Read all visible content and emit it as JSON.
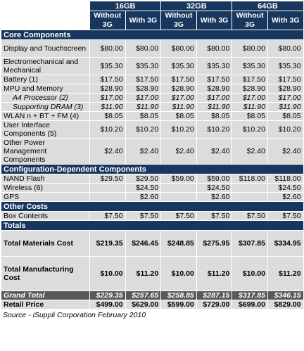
{
  "header": {
    "storage": [
      "16GB",
      "32GB",
      "64GB"
    ],
    "without_3g": "Without 3G",
    "with_3g": "With 3G"
  },
  "sections": {
    "core": "Core Components",
    "config": "Configuration-Dependent Components",
    "other": "Other Costs",
    "totals": "Totals"
  },
  "core_rows": [
    {
      "label": "Display and Touchscreen",
      "values": [
        "$80.00",
        "$80.00",
        "$80.00",
        "$80.00",
        "$80.00",
        "$80.00"
      ]
    },
    {
      "label": "Electromechanical and Mechanical",
      "values": [
        "$35.30",
        "$35.30",
        "$35.30",
        "$35.30",
        "$35.30",
        "$35.30"
      ]
    },
    {
      "label": "Battery (1)",
      "values": [
        "$17.50",
        "$17.50",
        "$17.50",
        "$17.50",
        "$17.50",
        "$17.50"
      ]
    },
    {
      "label": "MPU and Memory",
      "values": [
        "$28.90",
        "$28.90",
        "$28.90",
        "$28.90",
        "$28.90",
        "$28.90"
      ]
    },
    {
      "label": "A4 Processor (2)",
      "values": [
        "$17.00",
        "$17.00",
        "$17.00",
        "$17.00",
        "$17.00",
        "$17.00"
      ]
    },
    {
      "label": "Supporting DRAM (3)",
      "values": [
        "$11.90",
        "$11.90",
        "$11.90",
        "$11.90",
        "$11.90",
        "$11.90"
      ]
    },
    {
      "label": "WLAN n + BT + FM (4)",
      "values": [
        "$8.05",
        "$8.05",
        "$8.05",
        "$8.05",
        "$8.05",
        "$8.05"
      ]
    },
    {
      "label": "User Interface Components (5)",
      "values": [
        "$10.20",
        "$10.20",
        "$10.20",
        "$10.20",
        "$10.20",
        "$10.20"
      ]
    },
    {
      "label": "Other Power Management Components",
      "values": [
        "$2.40",
        "$2.40",
        "$2.40",
        "$2.40",
        "$2.40",
        "$2.40"
      ]
    }
  ],
  "config_rows": [
    {
      "label": "NAND Flash",
      "values": [
        "$29.50",
        "$29.50",
        "$59.00",
        "$59.00",
        "$118.00",
        "$118.00"
      ]
    },
    {
      "label": "Wireless (6)",
      "values": [
        "",
        "$24.50",
        "",
        "$24.50",
        "",
        "$24.50"
      ]
    },
    {
      "label": "GPS",
      "values": [
        "",
        "$2.60",
        "",
        "$2.60",
        "",
        "$2.60"
      ]
    }
  ],
  "other_rows": [
    {
      "label": "Box Contents",
      "values": [
        "$7.50",
        "$7.50",
        "$7.50",
        "$7.50",
        "$7.50",
        "$7.50"
      ]
    }
  ],
  "total_rows": [
    {
      "label": "Total Materials Cost",
      "values": [
        "$219.35",
        "$246.45",
        "$248.85",
        "$275.95",
        "$307.85",
        "$334.95"
      ]
    },
    {
      "label": "Total Manufacturing Cost",
      "values": [
        "$10.00",
        "$11.20",
        "$10.00",
        "$11.20",
        "$10.00",
        "$11.20"
      ]
    }
  ],
  "grand_total": {
    "label": "Grand Total",
    "values": [
      "$229.35",
      "$257.65",
      "$258.85",
      "$287.15",
      "$317.85",
      "$346.15"
    ]
  },
  "retail_price": {
    "label": "Retail Price",
    "values": [
      "$499.00",
      "$629.00",
      "$599.00",
      "$729.00",
      "$699.00",
      "$829.00"
    ]
  },
  "source": "Source - iSuppli Corporation February 2010"
}
